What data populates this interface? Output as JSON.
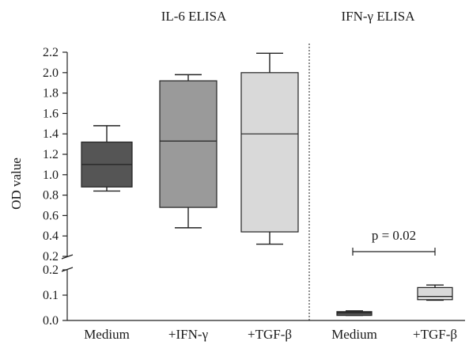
{
  "chart_data": {
    "type": "box",
    "ylabel": "OD value",
    "y_upper_ticks": [
      "0.2",
      "0.4",
      "0.6",
      "0.8",
      "1.0",
      "1.2",
      "1.4",
      "1.6",
      "1.8",
      "2.0",
      "2.2"
    ],
    "y_lower_ticks": [
      "0.0",
      "0.1",
      "0.2"
    ],
    "panels": [
      {
        "title": "IL-6 ELISA",
        "groups": [
          {
            "category": "Medium",
            "min": 0.84,
            "q1": 0.88,
            "median": 1.1,
            "q3": 1.32,
            "max": 1.48,
            "color": "#555555"
          },
          {
            "category": "+IFN-γ",
            "min": 0.48,
            "q1": 0.68,
            "median": 1.33,
            "q3": 1.92,
            "max": 1.98,
            "color": "#9a9a9a"
          },
          {
            "category": "+TGF-β",
            "min": 0.32,
            "q1": 0.44,
            "median": 1.4,
            "q3": 2.0,
            "max": 2.19,
            "color": "#d9d9d9"
          }
        ]
      },
      {
        "title": "IFN-γ ELISA",
        "annotation": "p = 0.02",
        "groups": [
          {
            "category": "Medium",
            "min": 0.02,
            "q1": 0.02,
            "median": 0.03,
            "q3": 0.035,
            "max": 0.038,
            "color": "#555555"
          },
          {
            "category": "+TGF-β",
            "min": 0.08,
            "q1": 0.082,
            "median": 0.095,
            "q3": 0.13,
            "max": 0.14,
            "color": "#d9d9d9"
          }
        ]
      }
    ]
  }
}
